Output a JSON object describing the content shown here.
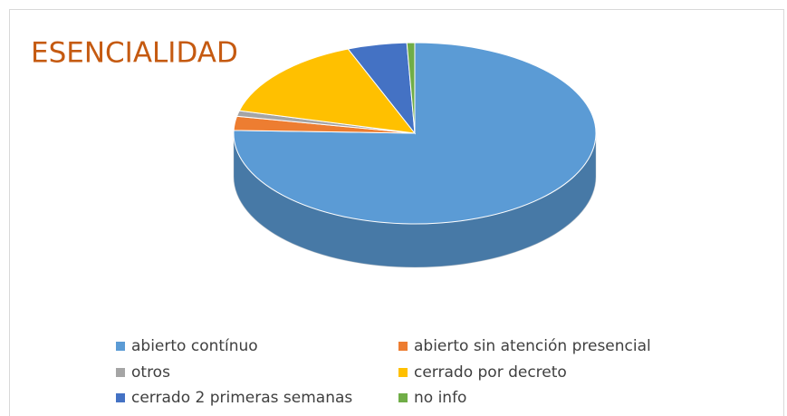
{
  "chart_data": {
    "type": "pie3d",
    "title": "ESENCIALIDAD",
    "categories": [
      "abierto contínuo",
      "abierto sin atención presencial",
      "otros",
      "cerrado por decreto",
      "cerrado 2 primeras semanas",
      "no info"
    ],
    "values": [
      75.5,
      2.5,
      1,
      15,
      5.3,
      0.7
    ],
    "colors": [
      "#5b9bd5",
      "#ed7d31",
      "#a5a5a5",
      "#ffc000",
      "#4472c4",
      "#70ad47"
    ],
    "legend": "bottom"
  }
}
